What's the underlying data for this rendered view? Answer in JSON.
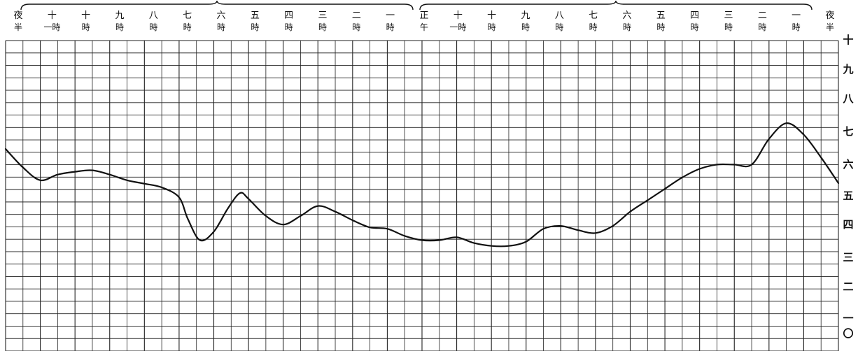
{
  "chart_data": {
    "type": "line",
    "title": "",
    "xlabel": "",
    "ylabel": "",
    "x_tick_labels": [
      [
        "夜",
        "半"
      ],
      [
        "十",
        "一時"
      ],
      [
        "十",
        "時"
      ],
      [
        "九",
        "時"
      ],
      [
        "八",
        "時"
      ],
      [
        "七",
        "時"
      ],
      [
        "六",
        "時"
      ],
      [
        "五",
        "時"
      ],
      [
        "四",
        "時"
      ],
      [
        "三",
        "時"
      ],
      [
        "二",
        "時"
      ],
      [
        "一",
        "時"
      ],
      [
        "正",
        "午"
      ],
      [
        "十",
        "一時"
      ],
      [
        "十",
        "時"
      ],
      [
        "九",
        "時"
      ],
      [
        "八",
        "時"
      ],
      [
        "七",
        "時"
      ],
      [
        "六",
        "時"
      ],
      [
        "五",
        "時"
      ],
      [
        "四",
        "時"
      ],
      [
        "三",
        "時"
      ],
      [
        "二",
        "時"
      ],
      [
        "一",
        "時"
      ],
      [
        "夜",
        "半"
      ]
    ],
    "y_tick_labels": [
      "十",
      "九",
      "八",
      "七",
      "六",
      "五",
      "四",
      "三",
      "二",
      "一",
      "〇"
    ],
    "x_range": [
      0,
      24
    ],
    "ylim": [
      0,
      10
    ],
    "grid": true,
    "x": [
      0,
      0.5,
      1,
      1.5,
      2,
      2.5,
      3,
      3.5,
      4,
      4.5,
      5,
      5.25,
      5.6,
      6,
      6.4,
      6.75,
      7,
      7.5,
      8,
      8.5,
      9,
      9.5,
      10,
      10.5,
      11,
      11.5,
      12,
      12.5,
      13,
      13.5,
      14,
      14.5,
      15,
      15.5,
      16,
      16.5,
      17,
      17.5,
      18,
      18.5,
      19,
      19.5,
      20,
      20.5,
      21,
      21.5,
      22,
      22.5,
      23,
      23.5,
      24
    ],
    "y": [
      6.3,
      5.65,
      5.2,
      5.4,
      5.5,
      5.55,
      5.4,
      5.2,
      5.08,
      4.95,
      4.6,
      3.85,
      3.1,
      3.4,
      4.2,
      4.75,
      4.55,
      3.95,
      3.65,
      3.95,
      4.3,
      4.1,
      3.8,
      3.55,
      3.5,
      3.25,
      3.1,
      3.1,
      3.2,
      3.0,
      2.9,
      2.9,
      3.05,
      3.5,
      3.6,
      3.45,
      3.35,
      3.6,
      4.1,
      4.5,
      4.9,
      5.3,
      5.6,
      5.75,
      5.75,
      5.75,
      6.65,
      7.2,
      6.8,
      6.0,
      5.1
    ]
  }
}
